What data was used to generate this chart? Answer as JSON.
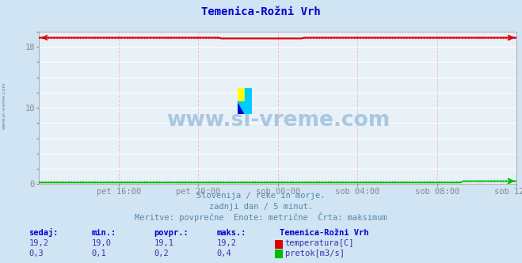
{
  "title": "Temenica-Rožni Vrh",
  "title_color": "#0000cc",
  "bg_color": "#d0e4f4",
  "plot_bg_color": "#e8f0f8",
  "watermark": "www.si-vreme.com",
  "watermark_color": "#a8c8e0",
  "x_labels": [
    "pet 16:00",
    "pet 20:00",
    "sob 00:00",
    "sob 04:00",
    "sob 08:00",
    "sob 12:00"
  ],
  "n_points": 145,
  "ylim": [
    0,
    20
  ],
  "ytick_vals": [
    0,
    2,
    4,
    6,
    8,
    10,
    12,
    14,
    16,
    18,
    20
  ],
  "ytick_labels_show": [
    0,
    10,
    18
  ],
  "temp_value": 19.2,
  "temp_min": 19.0,
  "temp_avg": 19.1,
  "temp_max": 19.2,
  "flow_value": 0.3,
  "flow_min": 0.1,
  "flow_avg": 0.2,
  "flow_max": 0.4,
  "temp_color": "#dd0000",
  "flow_color": "#00bb00",
  "grid_h_color": "#dddddd",
  "grid_v_color": "#ffbbbb",
  "subtitle1": "Slovenija / reke in morje.",
  "subtitle2": "zadnji dan / 5 minut.",
  "subtitle3": "Meritve: povprečne  Enote: metrične  Črta: maksimum",
  "legend_title": "Temenica-Rožni Vrh",
  "label_temp": "temperatura[C]",
  "label_flow": "pretok[m3/s]",
  "col_sedaj": "sedaj:",
  "col_min": "min.:",
  "col_povpr": "povpr.:",
  "col_maks": "maks.:",
  "left_label": "www.si-vreme.com",
  "left_label_color": "#6080a0",
  "header_color": "#0000cc",
  "val_color": "#3333aa",
  "subtitle_color": "#5588aa",
  "font_size": 7.5,
  "title_font_size": 10
}
